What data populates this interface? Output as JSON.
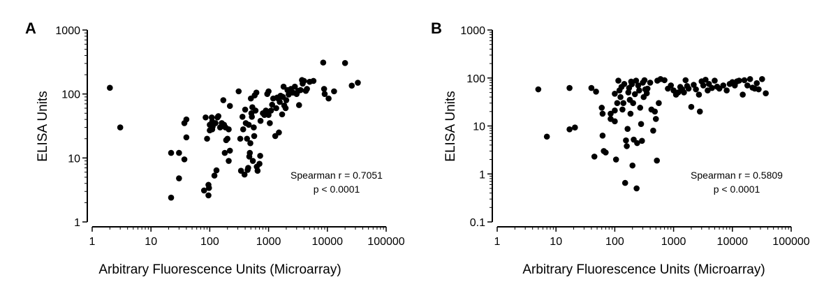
{
  "chart_data": [
    {
      "panel": "A",
      "type": "scatter",
      "xscale": "log",
      "yscale": "log",
      "xlim": [
        1,
        100000
      ],
      "ylim": [
        1,
        1000
      ],
      "xticks": [
        "1",
        "10",
        "100",
        "1000",
        "10000",
        "100000"
      ],
      "yticks": [
        "1",
        "10",
        "100",
        "1000"
      ],
      "xlabel": "Arbitrary Fluorescence Units (Microarray)",
      "ylabel": "ELISA Units",
      "annotation": [
        "Spearman r = 0.7051",
        "p < 0.0001"
      ],
      "grid": false,
      "points": [
        [
          2,
          125
        ],
        [
          3,
          30
        ],
        [
          22,
          12
        ],
        [
          22,
          2.4
        ],
        [
          30,
          12
        ],
        [
          30,
          4.8
        ],
        [
          37,
          9.5
        ],
        [
          37,
          35
        ],
        [
          40,
          21
        ],
        [
          40,
          40
        ],
        [
          80,
          3.1
        ],
        [
          85,
          43
        ],
        [
          90,
          20
        ],
        [
          95,
          3.8
        ],
        [
          97,
          3.4
        ],
        [
          95,
          2.6
        ],
        [
          100,
          27
        ],
        [
          100,
          33
        ],
        [
          108,
          43
        ],
        [
          110,
          37
        ],
        [
          110,
          28
        ],
        [
          112,
          31
        ],
        [
          120,
          5.3
        ],
        [
          125,
          35
        ],
        [
          130,
          6.4
        ],
        [
          135,
          43
        ],
        [
          140,
          45
        ],
        [
          150,
          30
        ],
        [
          160,
          35
        ],
        [
          170,
          80
        ],
        [
          175,
          33
        ],
        [
          180,
          12
        ],
        [
          185,
          30
        ],
        [
          190,
          19
        ],
        [
          200,
          20
        ],
        [
          210,
          9
        ],
        [
          210,
          28
        ],
        [
          220,
          13
        ],
        [
          220,
          65
        ],
        [
          310,
          110
        ],
        [
          330,
          20
        ],
        [
          340,
          6.3
        ],
        [
          360,
          44
        ],
        [
          370,
          28
        ],
        [
          390,
          5.5
        ],
        [
          400,
          57
        ],
        [
          410,
          35
        ],
        [
          430,
          20
        ],
        [
          440,
          6.5
        ],
        [
          450,
          7
        ],
        [
          460,
          33
        ],
        [
          470,
          10.5
        ],
        [
          480,
          12
        ],
        [
          490,
          17
        ],
        [
          500,
          85
        ],
        [
          510,
          50
        ],
        [
          520,
          44
        ],
        [
          530,
          62
        ],
        [
          540,
          9
        ],
        [
          560,
          30
        ],
        [
          570,
          22
        ],
        [
          580,
          95
        ],
        [
          600,
          55
        ],
        [
          620,
          105
        ],
        [
          630,
          7.3
        ],
        [
          650,
          6.3
        ],
        [
          700,
          8.1
        ],
        [
          720,
          10.8
        ],
        [
          730,
          38
        ],
        [
          800,
          50
        ],
        [
          850,
          47
        ],
        [
          900,
          55
        ],
        [
          950,
          100
        ],
        [
          1000,
          110
        ],
        [
          1000,
          47
        ],
        [
          1050,
          35
        ],
        [
          1100,
          55
        ],
        [
          1150,
          68
        ],
        [
          1200,
          85
        ],
        [
          1300,
          22
        ],
        [
          1350,
          60
        ],
        [
          1400,
          88
        ],
        [
          1450,
          85
        ],
        [
          1500,
          25
        ],
        [
          1550,
          75
        ],
        [
          1600,
          94
        ],
        [
          1700,
          48
        ],
        [
          1750,
          90
        ],
        [
          1800,
          130
        ],
        [
          1850,
          66
        ],
        [
          1950,
          60
        ],
        [
          2000,
          80
        ],
        [
          2100,
          115
        ],
        [
          2200,
          98
        ],
        [
          2400,
          120
        ],
        [
          2600,
          105
        ],
        [
          2800,
          130
        ],
        [
          3000,
          100
        ],
        [
          3200,
          112
        ],
        [
          3300,
          67
        ],
        [
          3500,
          115
        ],
        [
          3700,
          165
        ],
        [
          3800,
          145
        ],
        [
          4000,
          160
        ],
        [
          4300,
          112
        ],
        [
          4500,
          120
        ],
        [
          5000,
          155
        ],
        [
          5800,
          160
        ],
        [
          8500,
          310
        ],
        [
          8800,
          120
        ],
        [
          9000,
          100
        ],
        [
          10500,
          85
        ],
        [
          13000,
          110
        ],
        [
          20000,
          305
        ],
        [
          26000,
          135
        ],
        [
          33000,
          150
        ]
      ]
    },
    {
      "panel": "B",
      "type": "scatter",
      "xscale": "log",
      "yscale": "log",
      "xlim": [
        1,
        100000
      ],
      "ylim": [
        0.1,
        1000
      ],
      "xticks": [
        "1",
        "10",
        "100",
        "1000",
        "10000",
        "100000"
      ],
      "yticks": [
        "0.1",
        "1",
        "10",
        "100",
        "1000"
      ],
      "xlabel": "Arbitrary Fluorescence Units (Microarray)",
      "ylabel": "ELISA Units",
      "annotation": [
        "Spearman r = 0.5809",
        "p < 0.0001"
      ],
      "grid": false,
      "points": [
        [
          5,
          58
        ],
        [
          7,
          6
        ],
        [
          17,
          62
        ],
        [
          17,
          8.5
        ],
        [
          21,
          9.3
        ],
        [
          40,
          62
        ],
        [
          45,
          2.3
        ],
        [
          48,
          52
        ],
        [
          60,
          24
        ],
        [
          62,
          18
        ],
        [
          62,
          6.3
        ],
        [
          65,
          3
        ],
        [
          70,
          2.8
        ],
        [
          85,
          18
        ],
        [
          85,
          14
        ],
        [
          100,
          47
        ],
        [
          100,
          21
        ],
        [
          100,
          12.5
        ],
        [
          105,
          2
        ],
        [
          110,
          30
        ],
        [
          115,
          88
        ],
        [
          120,
          55
        ],
        [
          125,
          40
        ],
        [
          130,
          65
        ],
        [
          135,
          22
        ],
        [
          140,
          30
        ],
        [
          145,
          75
        ],
        [
          150,
          0.65
        ],
        [
          155,
          5
        ],
        [
          160,
          3.8
        ],
        [
          165,
          8.7
        ],
        [
          170,
          50
        ],
        [
          175,
          62
        ],
        [
          180,
          35
        ],
        [
          185,
          18
        ],
        [
          190,
          84
        ],
        [
          195,
          74
        ],
        [
          200,
          1.5
        ],
        [
          205,
          30
        ],
        [
          210,
          5.2
        ],
        [
          220,
          46
        ],
        [
          230,
          88
        ],
        [
          235,
          0.5
        ],
        [
          240,
          4.4
        ],
        [
          250,
          70
        ],
        [
          260,
          55
        ],
        [
          270,
          24
        ],
        [
          280,
          11
        ],
        [
          290,
          4.9
        ],
        [
          300,
          80
        ],
        [
          310,
          40
        ],
        [
          320,
          90
        ],
        [
          330,
          58
        ],
        [
          350,
          48
        ],
        [
          360,
          60
        ],
        [
          400,
          80
        ],
        [
          420,
          22
        ],
        [
          450,
          8
        ],
        [
          480,
          20
        ],
        [
          500,
          14
        ],
        [
          520,
          1.9
        ],
        [
          530,
          88
        ],
        [
          560,
          30
        ],
        [
          600,
          95
        ],
        [
          700,
          90
        ],
        [
          800,
          60
        ],
        [
          900,
          70
        ],
        [
          1000,
          55
        ],
        [
          1100,
          45
        ],
        [
          1200,
          50
        ],
        [
          1300,
          65
        ],
        [
          1400,
          58
        ],
        [
          1500,
          50
        ],
        [
          1600,
          90
        ],
        [
          1700,
          68
        ],
        [
          1800,
          60
        ],
        [
          2000,
          25
        ],
        [
          2200,
          72
        ],
        [
          2400,
          58
        ],
        [
          2700,
          45
        ],
        [
          2800,
          20
        ],
        [
          3000,
          85
        ],
        [
          3200,
          70
        ],
        [
          3500,
          92
        ],
        [
          3800,
          55
        ],
        [
          4000,
          75
        ],
        [
          4500,
          62
        ],
        [
          5000,
          88
        ],
        [
          5500,
          66
        ],
        [
          6000,
          60
        ],
        [
          7000,
          70
        ],
        [
          8000,
          55
        ],
        [
          9000,
          75
        ],
        [
          10000,
          82
        ],
        [
          11000,
          70
        ],
        [
          12000,
          85
        ],
        [
          13000,
          88
        ],
        [
          15000,
          45
        ],
        [
          16000,
          90
        ],
        [
          18000,
          70
        ],
        [
          20000,
          95
        ],
        [
          22000,
          63
        ],
        [
          24000,
          60
        ],
        [
          26000,
          78
        ],
        [
          28000,
          58
        ],
        [
          32000,
          95
        ],
        [
          37000,
          48
        ]
      ]
    }
  ]
}
